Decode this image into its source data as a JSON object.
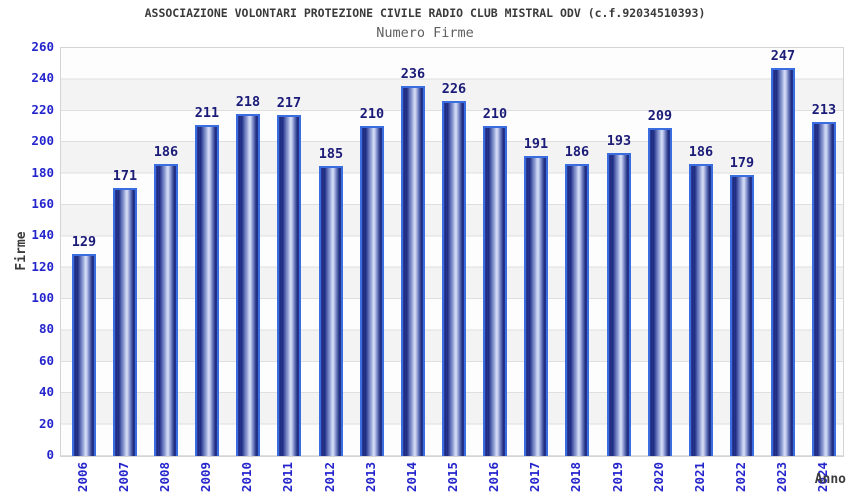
{
  "header": {
    "title": "ASSOCIAZIONE VOLONTARI PROTEZIONE CIVILE RADIO CLUB MISTRAL ODV (c.f.92034510393)",
    "subtitle": "Numero Firme"
  },
  "chart_data": {
    "type": "bar",
    "title": "ASSOCIAZIONE VOLONTARI PROTEZIONE CIVILE RADIO CLUB MISTRAL ODV (c.f.92034510393)",
    "subtitle": "Numero Firme",
    "xlabel": "Anno",
    "ylabel": "Firme",
    "categories": [
      "2006",
      "2007",
      "2008",
      "2009",
      "2010",
      "2011",
      "2012",
      "2013",
      "2014",
      "2015",
      "2016",
      "2017",
      "2018",
      "2019",
      "2020",
      "2021",
      "2022",
      "2023",
      "2024"
    ],
    "values": [
      129,
      171,
      186,
      211,
      218,
      217,
      185,
      210,
      236,
      226,
      210,
      191,
      186,
      193,
      209,
      186,
      179,
      247,
      213
    ],
    "ylim": [
      0,
      260
    ],
    "ytick_step": 20,
    "legend": "none",
    "grid": "horizontal-bands",
    "colors": {
      "bar_border": "#3a6ee0",
      "bar_dark": "#1c2a80",
      "bar_highlight": "#d8dff5",
      "tick_label": "#2525cd",
      "value_label": "#1b1b78",
      "band_gray": "#f3f3f3",
      "band_white": "#fdfdfd",
      "title_text": "#3a3a3a",
      "subtitle_text": "#606060"
    }
  }
}
